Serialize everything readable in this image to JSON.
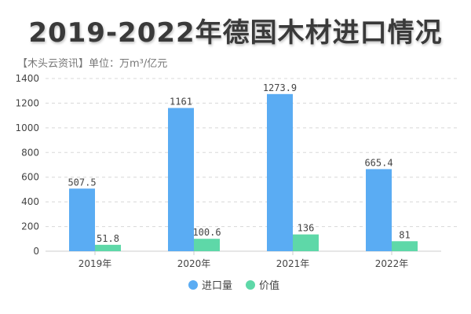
{
  "chart_data": {
    "type": "bar",
    "title": "2019-2022年德国木材进口情况",
    "subtitle": "【木头云资讯】单位：万m³/亿元",
    "categories": [
      "2019年",
      "2020年",
      "2021年",
      "2022年"
    ],
    "series": [
      {
        "name": "进口量",
        "color": "#5aacf3",
        "values": [
          507.5,
          1161,
          1273.9,
          665.4
        ],
        "labels": [
          "507.5",
          "1161",
          "1273.9",
          "665.4"
        ]
      },
      {
        "name": "价值",
        "color": "#5ed8a8",
        "values": [
          51.8,
          100.6,
          136,
          81
        ],
        "labels": [
          "51.8",
          "100.6",
          "136",
          "81"
        ]
      }
    ],
    "ylim": [
      0,
      1400
    ],
    "yticks": [
      0,
      200,
      400,
      600,
      800,
      1000,
      1200,
      1400
    ],
    "grid": true,
    "legend": "bottom-center"
  }
}
